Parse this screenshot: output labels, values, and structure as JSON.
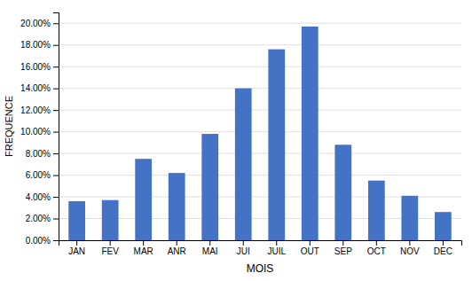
{
  "chart_data": {
    "type": "bar",
    "categories": [
      "JAN",
      "FEV",
      "MAR",
      "ANR",
      "MAI",
      "JUI",
      "JUIL",
      "OUT",
      "SEP",
      "OCT",
      "NOV",
      "DEC"
    ],
    "values": [
      0.036,
      0.037,
      0.075,
      0.062,
      0.098,
      0.14,
      0.176,
      0.197,
      0.088,
      0.055,
      0.041,
      0.026
    ],
    "color": "#4472C4",
    "xlabel": "MOIS",
    "ylabel": "FREQUENCE",
    "ylim": [
      0,
      0.21
    ],
    "yticks": [
      {
        "value": 0.0,
        "label": "0.00%"
      },
      {
        "value": 0.02,
        "label": "2.00%"
      },
      {
        "value": 0.04,
        "label": "4.00%"
      },
      {
        "value": 0.06,
        "label": "6.00%"
      },
      {
        "value": 0.08,
        "label": "8.00%"
      },
      {
        "value": 0.1,
        "label": "10.00%"
      },
      {
        "value": 0.12,
        "label": "12.00%"
      },
      {
        "value": 0.14,
        "label": "14.00%"
      },
      {
        "value": 0.16,
        "label": "16.00%"
      },
      {
        "value": 0.18,
        "label": "18.00%"
      },
      {
        "value": 0.2,
        "label": "20.00%"
      }
    ],
    "grid": true
  }
}
